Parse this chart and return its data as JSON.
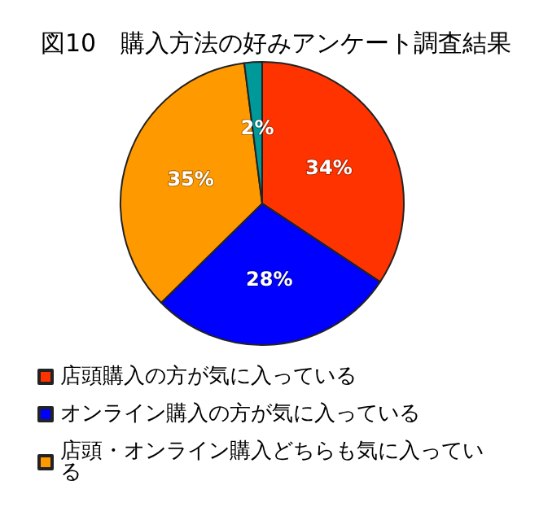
{
  "chart_data": {
    "type": "pie",
    "title": "図10　購入方法の好みアンケート調査結果",
    "categories": [
      "店頭購入の方が気に入っている",
      "オンライン購入の方が気に入っている",
      "店頭・オンライン購入どちらも気に入っている",
      null
    ],
    "values": [
      34,
      28,
      35,
      2
    ],
    "colors": [
      "#ff3300",
      "#0000ff",
      "#ff9900",
      "#009999"
    ],
    "value_labels": [
      "34%",
      "28%",
      "35%",
      "2%"
    ],
    "legend": "bottom"
  }
}
